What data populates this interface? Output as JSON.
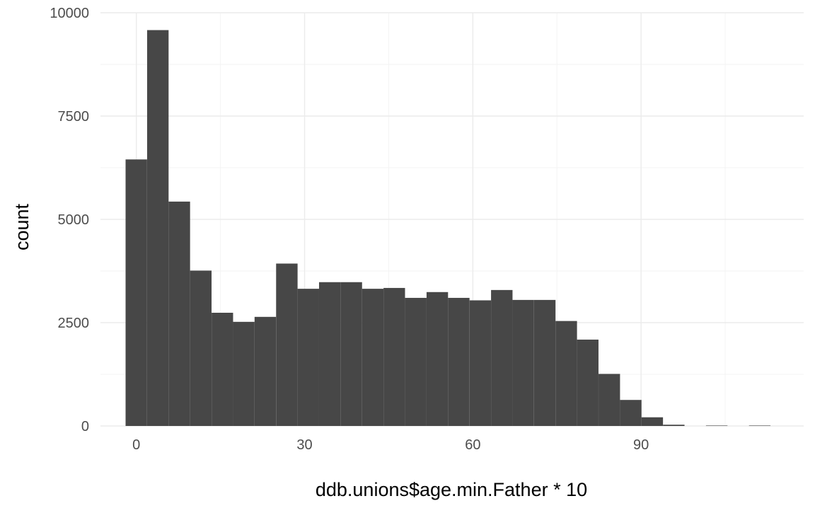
{
  "chart_data": {
    "type": "bar",
    "subtype": "histogram",
    "xlabel": "ddb.unions$age.min.Father * 10",
    "ylabel": "count",
    "xlim": [
      -6.4,
      119
    ],
    "ylim": [
      0,
      10000
    ],
    "x_ticks": [
      0,
      30,
      60,
      90
    ],
    "x_tick_labels": [
      "0",
      "30",
      "60",
      "90"
    ],
    "y_ticks": [
      0,
      2500,
      5000,
      7500,
      10000
    ],
    "y_tick_labels": [
      "0",
      "2500",
      "5000",
      "7500",
      "10000"
    ],
    "grid": true,
    "legend": "none",
    "bin_width": 3.83,
    "bin_starts": [
      -1.92,
      1.92,
      5.75,
      9.58,
      13.42,
      17.25,
      21.08,
      24.92,
      28.75,
      32.58,
      36.42,
      40.25,
      44.08,
      47.92,
      51.75,
      55.58,
      59.42,
      63.25,
      67.08,
      70.92,
      74.75,
      78.58,
      82.42,
      86.25,
      90.08,
      93.92,
      97.75,
      101.58,
      105.42,
      109.25
    ],
    "values": [
      6450,
      9580,
      5430,
      3760,
      2740,
      2520,
      2640,
      3930,
      3320,
      3480,
      3480,
      3320,
      3340,
      3100,
      3240,
      3100,
      3040,
      3290,
      3050,
      3050,
      2540,
      2090,
      1260,
      630,
      210,
      30,
      0,
      10,
      0,
      10
    ],
    "bar_color": "#474747"
  }
}
